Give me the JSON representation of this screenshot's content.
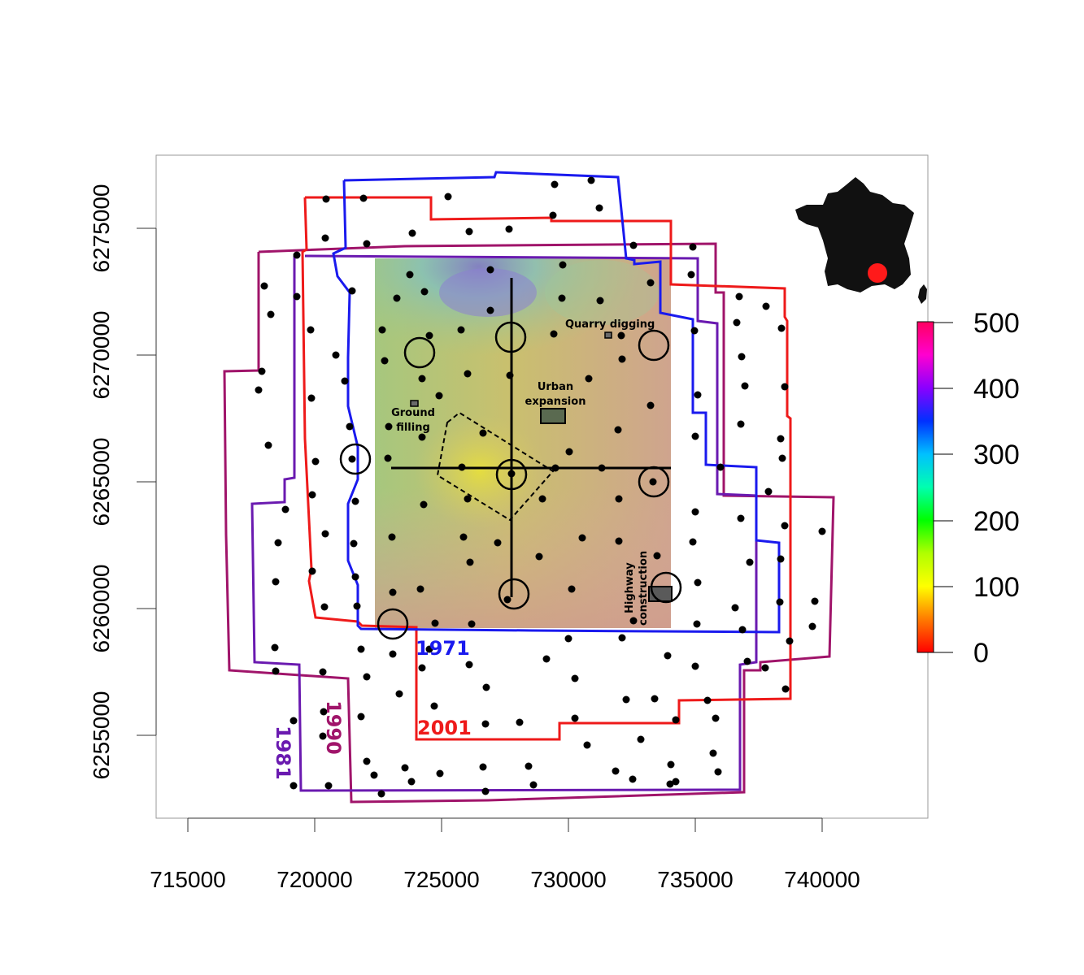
{
  "x_axis": {
    "ticks": [
      "715000",
      "720000",
      "725000",
      "730000",
      "735000",
      "740000"
    ]
  },
  "y_axis": {
    "ticks": [
      "6255000",
      "6260000",
      "6265000",
      "6270000",
      "6275000"
    ]
  },
  "colorbar": {
    "ticks": [
      "0",
      "100",
      "200",
      "300",
      "400",
      "500"
    ]
  },
  "annotations": {
    "quarry": "Quarry digging",
    "urban_1": "Urban",
    "urban_2": "expansion",
    "ground_1": "Ground",
    "ground_2": "filling",
    "highway_1": "Highway",
    "highway_2": "construction"
  },
  "survey_years": {
    "y1971": "1971",
    "y1981": "1981",
    "y1990": "1990",
    "y2001": "2001"
  },
  "colors": {
    "y1971": "#1a1aee",
    "y1981": "#6a1ab0",
    "y1990": "#a0146a",
    "y2001": "#ee1a1a",
    "location_marker": "#ff1a1a"
  }
}
